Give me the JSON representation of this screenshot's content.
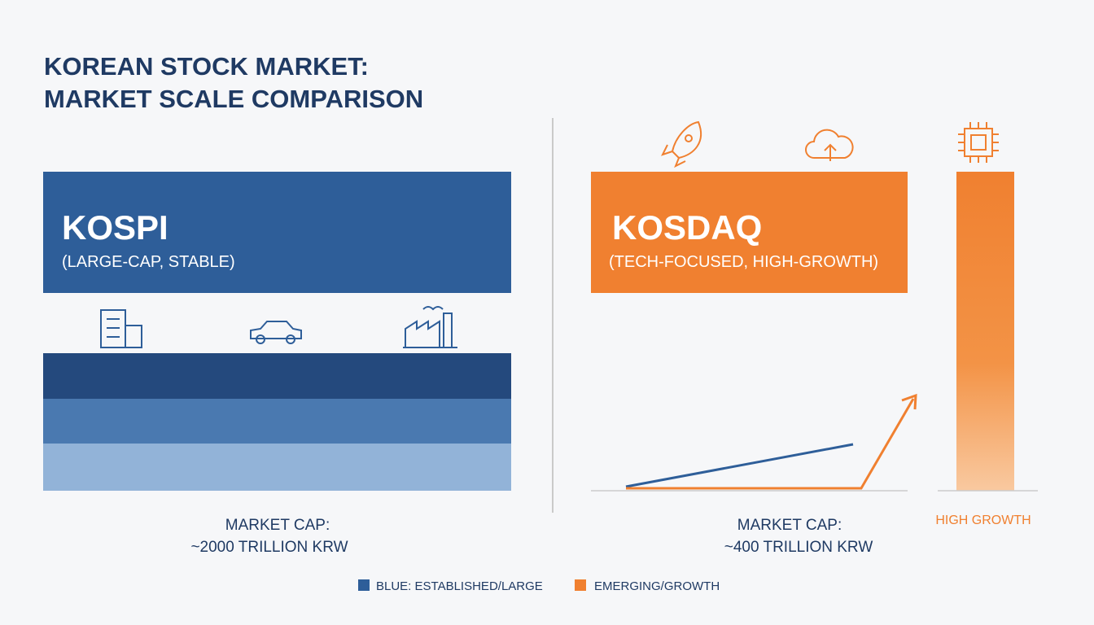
{
  "header": {
    "title_lines": [
      "KOREAN STOCK MARKET:",
      "MARKET SCALE COMPARISON"
    ]
  },
  "panels": [
    {
      "name": "KOSPI",
      "description": "(LARGE-CAP, STABLE)",
      "cap_label": "MARKET CAP:",
      "cap_value": "~2000 TRILLION KRW"
    },
    {
      "name": "KOSDAQ",
      "description": "(TECH-FOCUSED, HIGH-GROWTH)",
      "cap_label": "MARKET CAP:",
      "cap_value": "~400 TRILLION KRW"
    }
  ],
  "side_label": "HIGH GROWTH",
  "legend": [
    "BLUE: ESTABLISHED/LARGE",
    "EMERGING/GROWTH"
  ]
}
